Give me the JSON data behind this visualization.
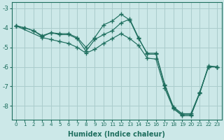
{
  "xlabel": "Humidex (Indice chaleur)",
  "bg_color": "#cce8e8",
  "grid_color": "#aacccc",
  "line_color": "#1e6e5e",
  "xlim": [
    -0.5,
    23.5
  ],
  "ylim": [
    -8.7,
    -2.7
  ],
  "yticks": [
    -8,
    -7,
    -6,
    -5,
    -4,
    -3
  ],
  "xticks": [
    0,
    1,
    2,
    3,
    4,
    5,
    6,
    7,
    8,
    9,
    10,
    11,
    12,
    13,
    14,
    15,
    16,
    17,
    18,
    19,
    20,
    21,
    22,
    23
  ],
  "series1": [
    [
      0,
      -3.9
    ],
    [
      1,
      -4.0
    ],
    [
      2,
      -4.15
    ],
    [
      3,
      -4.4
    ],
    [
      4,
      -4.25
    ],
    [
      5,
      -4.35
    ],
    [
      6,
      -4.35
    ],
    [
      7,
      -4.55
    ],
    [
      8,
      -5.2
    ],
    [
      9,
      -4.6
    ],
    [
      10,
      -4.35
    ],
    [
      11,
      -4.15
    ],
    [
      12,
      -3.75
    ],
    [
      13,
      -3.55
    ],
    [
      14,
      -4.5
    ],
    [
      15,
      -5.35
    ],
    [
      16,
      -5.35
    ],
    [
      17,
      -6.95
    ],
    [
      18,
      -8.1
    ],
    [
      19,
      -8.45
    ],
    [
      20,
      -8.45
    ],
    [
      21,
      -7.35
    ],
    [
      22,
      -5.95
    ],
    [
      23,
      -6.0
    ]
  ],
  "series2": [
    [
      0,
      -3.9
    ],
    [
      1,
      -4.0
    ],
    [
      2,
      -4.15
    ],
    [
      3,
      -4.45
    ],
    [
      4,
      -4.25
    ],
    [
      5,
      -4.3
    ],
    [
      6,
      -4.3
    ],
    [
      7,
      -4.5
    ],
    [
      8,
      -5.0
    ],
    [
      9,
      -4.5
    ],
    [
      10,
      -3.85
    ],
    [
      11,
      -3.65
    ],
    [
      12,
      -3.3
    ],
    [
      13,
      -3.6
    ],
    [
      14,
      -4.55
    ],
    [
      15,
      -5.3
    ],
    [
      16,
      -5.3
    ],
    [
      17,
      -6.9
    ],
    [
      18,
      -8.05
    ],
    [
      19,
      -8.4
    ],
    [
      20,
      -8.4
    ],
    [
      21,
      -7.3
    ],
    [
      22,
      -6.0
    ],
    [
      23,
      -6.0
    ]
  ],
  "series3": [
    [
      0,
      -3.9
    ],
    [
      3,
      -4.5
    ],
    [
      4,
      -4.6
    ],
    [
      5,
      -4.7
    ],
    [
      6,
      -4.8
    ],
    [
      7,
      -5.0
    ],
    [
      8,
      -5.3
    ],
    [
      9,
      -5.1
    ],
    [
      10,
      -4.8
    ],
    [
      11,
      -4.55
    ],
    [
      12,
      -4.3
    ],
    [
      13,
      -4.55
    ],
    [
      14,
      -4.9
    ],
    [
      15,
      -5.55
    ],
    [
      16,
      -5.6
    ],
    [
      17,
      -7.1
    ],
    [
      18,
      -8.15
    ],
    [
      19,
      -8.5
    ],
    [
      20,
      -8.5
    ],
    [
      21,
      -7.35
    ],
    [
      22,
      -6.0
    ],
    [
      23,
      -6.0
    ]
  ]
}
